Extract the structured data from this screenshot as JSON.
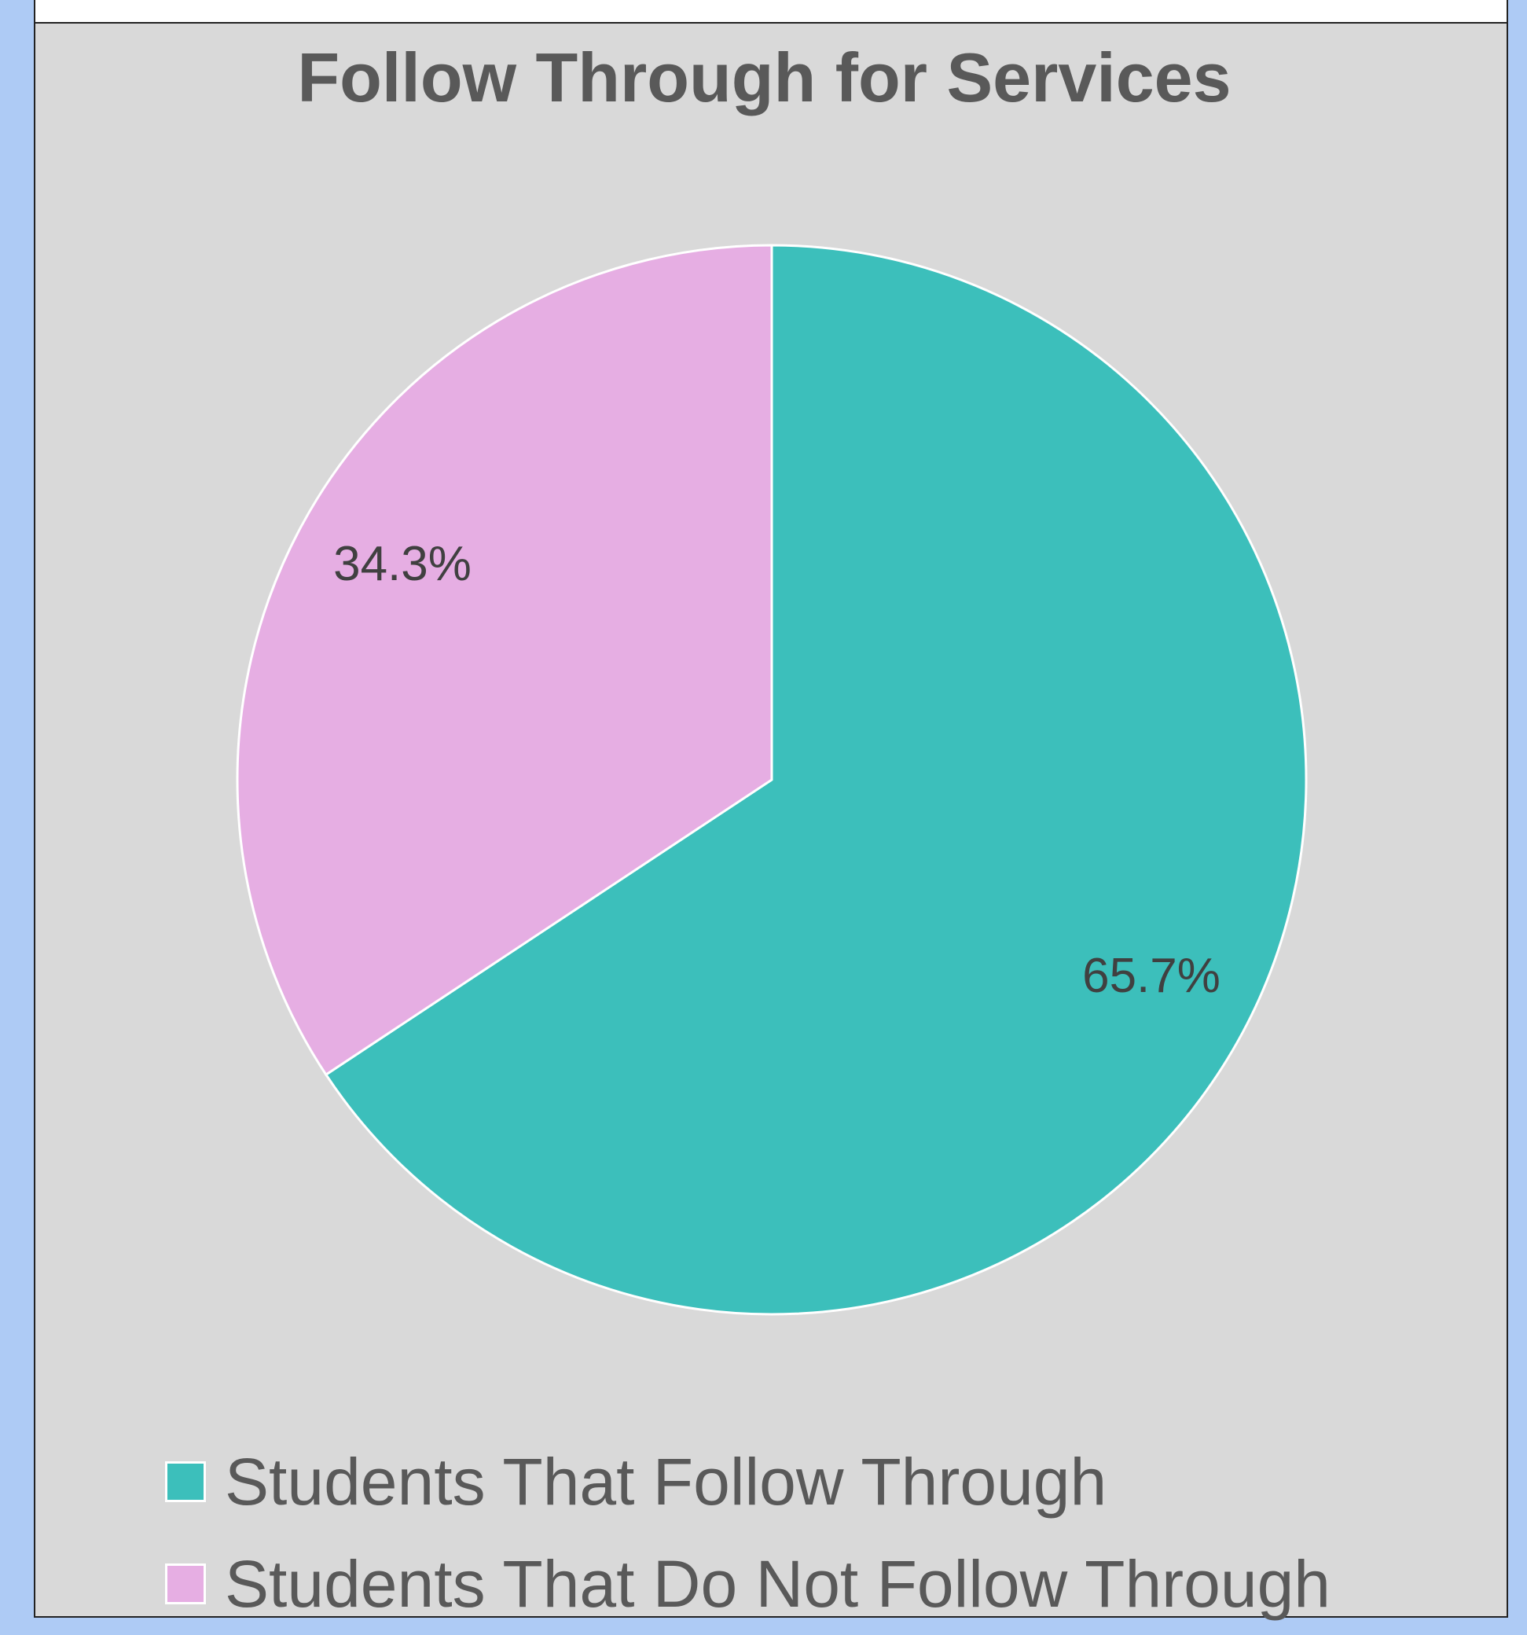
{
  "chart_data": {
    "type": "pie",
    "title": "Follow Through for Services",
    "categories": [
      "Students That Follow Through",
      "Students That Do Not Follow Through"
    ],
    "values": [
      65.7,
      34.3
    ],
    "labels": [
      "65.7%",
      "34.3%"
    ],
    "colors": [
      "#3cbfbb",
      "#e6aee3"
    ],
    "legend_position": "bottom",
    "slice_border_color": "#ffffff",
    "start_angle": "12 o'clock",
    "direction": "clockwise"
  }
}
